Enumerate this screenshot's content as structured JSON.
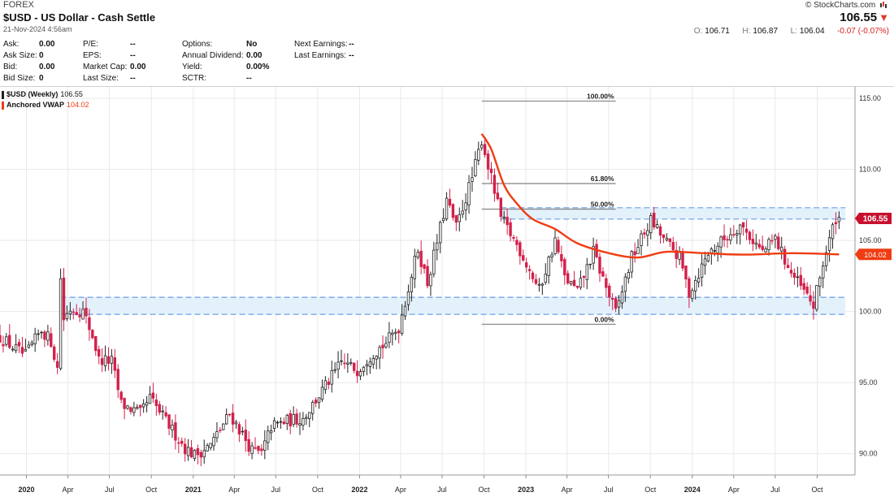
{
  "header": {
    "exchange": "FOREX",
    "title": "$USD - US Dollar - Cash Settle",
    "date": "21-Nov-2024 4:56am",
    "brand": "© StockCharts.com",
    "last_price": "106.55",
    "open_label": "O:",
    "open": "106.71",
    "high_label": "H:",
    "high": "106.87",
    "low_label": "L:",
    "low": "106.04",
    "change": "-0.07 (-0.07%)"
  },
  "stats": [
    {
      "label": "Ask:",
      "value": "0.00"
    },
    {
      "label": "Ask Size:",
      "value": "0"
    },
    {
      "label": "Bid:",
      "value": "0.00"
    },
    {
      "label": "Bid Size:",
      "value": "0"
    },
    {
      "label": "P/E:",
      "value": "--"
    },
    {
      "label": "EPS:",
      "value": "--"
    },
    {
      "label": "Market Cap:",
      "value": "0.00"
    },
    {
      "label": "Last Size:",
      "value": "--"
    },
    {
      "label": "Options:",
      "value": "No"
    },
    {
      "label": "Annual Dividend:",
      "value": "0.00"
    },
    {
      "label": "Yield:",
      "value": "0.00%"
    },
    {
      "label": "SCTR:",
      "value": "--"
    },
    {
      "label": "Next Earnings:",
      "value": "--"
    },
    {
      "label": "Last Earnings:",
      "value": "--"
    }
  ],
  "legend": [
    {
      "label": "$USD (Weekly)",
      "value": "106.55",
      "color": "#222222"
    },
    {
      "label": "Anchored VWAP",
      "value": "104.02",
      "color": "#f03c12"
    }
  ],
  "colors": {
    "up": "#222222",
    "down": "#d3204a",
    "vwap": "#f03c12",
    "price_tag": "#c8102e",
    "zone_fill": "#e3f1fb",
    "zone_line": "#6d9ee6",
    "fib_line": "#8c8c8c",
    "grid": "#e9e9e9"
  },
  "chart_data": {
    "type": "candlestick",
    "interval": "weekly",
    "ylim": [
      88.5,
      115.8
    ],
    "xlim": [
      "2019-11-04",
      "2024-12-23"
    ],
    "y_ticks": [
      "115.00",
      "110.00",
      "105.00",
      "100.00",
      "95.00",
      "90.00"
    ],
    "x_ticks": [
      {
        "date": "2020-01-01",
        "label": "2020",
        "bold": true
      },
      {
        "date": "2020-04-01",
        "label": "Apr"
      },
      {
        "date": "2020-07-01",
        "label": "Jul"
      },
      {
        "date": "2020-10-01",
        "label": "Oct"
      },
      {
        "date": "2021-01-01",
        "label": "2021",
        "bold": true
      },
      {
        "date": "2021-04-01",
        "label": "Apr"
      },
      {
        "date": "2021-07-01",
        "label": "Jul"
      },
      {
        "date": "2021-10-01",
        "label": "Oct"
      },
      {
        "date": "2022-01-01",
        "label": "2022",
        "bold": true
      },
      {
        "date": "2022-04-01",
        "label": "Apr"
      },
      {
        "date": "2022-07-01",
        "label": "Jul"
      },
      {
        "date": "2022-10-01",
        "label": "Oct"
      },
      {
        "date": "2023-01-01",
        "label": "2023",
        "bold": true
      },
      {
        "date": "2023-04-01",
        "label": "Apr"
      },
      {
        "date": "2023-07-01",
        "label": "Jul"
      },
      {
        "date": "2023-10-01",
        "label": "Oct"
      },
      {
        "date": "2024-01-01",
        "label": "2024",
        "bold": true
      },
      {
        "date": "2024-04-01",
        "label": "Apr"
      },
      {
        "date": "2024-07-01",
        "label": "Jul"
      },
      {
        "date": "2024-10-01",
        "label": "Oct"
      }
    ],
    "close_path": [
      [
        "2019-11-04",
        98.2
      ],
      [
        "2019-12-02",
        97.5
      ],
      [
        "2019-12-30",
        96.9
      ],
      [
        "2020-02-03",
        98.7
      ],
      [
        "2020-02-24",
        97.9
      ],
      [
        "2020-03-09",
        96.0
      ],
      [
        "2020-03-16",
        102.4
      ],
      [
        "2020-03-23",
        99.5
      ],
      [
        "2020-04-06",
        100.2
      ],
      [
        "2020-05-04",
        100.0
      ],
      [
        "2020-05-25",
        98.3
      ],
      [
        "2020-06-08",
        96.6
      ],
      [
        "2020-07-06",
        96.5
      ],
      [
        "2020-07-27",
        93.5
      ],
      [
        "2020-09-07",
        92.8
      ],
      [
        "2020-09-28",
        93.9
      ],
      [
        "2020-11-02",
        92.3
      ],
      [
        "2020-12-14",
        90.4
      ],
      [
        "2021-01-04",
        89.9
      ],
      [
        "2021-02-08",
        90.6
      ],
      [
        "2021-03-22",
        92.8
      ],
      [
        "2021-04-05",
        92.1
      ],
      [
        "2021-05-10",
        90.2
      ],
      [
        "2021-05-31",
        90.0
      ],
      [
        "2021-06-21",
        91.9
      ],
      [
        "2021-07-26",
        92.3
      ],
      [
        "2021-08-30",
        92.5
      ],
      [
        "2021-10-04",
        94.1
      ],
      [
        "2021-11-22",
        96.4
      ],
      [
        "2021-12-27",
        95.9
      ],
      [
        "2022-01-24",
        96.9
      ],
      [
        "2022-02-28",
        97.8
      ],
      [
        "2022-03-28",
        98.9
      ],
      [
        "2022-05-09",
        104.4
      ],
      [
        "2022-05-30",
        102.0
      ],
      [
        "2022-07-11",
        107.8
      ],
      [
        "2022-08-01",
        105.9
      ],
      [
        "2022-09-05",
        109.4
      ],
      [
        "2022-09-26",
        112.1
      ],
      [
        "2022-11-07",
        106.6
      ],
      [
        "2022-12-19",
        104.3
      ],
      [
        "2023-01-30",
        101.5
      ],
      [
        "2023-03-06",
        105.0
      ],
      [
        "2023-03-27",
        102.4
      ],
      [
        "2023-04-24",
        101.4
      ],
      [
        "2023-05-29",
        104.2
      ],
      [
        "2023-06-19",
        102.3
      ],
      [
        "2023-07-17",
        99.9
      ],
      [
        "2023-08-21",
        103.8
      ],
      [
        "2023-10-02",
        106.4
      ],
      [
        "2023-10-30",
        105.1
      ],
      [
        "2023-12-04",
        103.8
      ],
      [
        "2023-12-25",
        101.3
      ],
      [
        "2024-02-05",
        104.1
      ],
      [
        "2024-04-15",
        106.1
      ],
      [
        "2024-06-03",
        104.2
      ],
      [
        "2024-07-01",
        105.1
      ],
      [
        "2024-08-05",
        102.7
      ],
      [
        "2024-09-23",
        100.4
      ],
      [
        "2024-10-14",
        103.4
      ],
      [
        "2024-11-11",
        106.6
      ],
      [
        "2024-11-18",
        106.55
      ]
    ],
    "vwap": {
      "name": "Anchored VWAP",
      "anchor": "2022-09-26",
      "last": 104.02,
      "points": [
        [
          "2022-09-26",
          112.5
        ],
        [
          "2022-10-17",
          111.4
        ],
        [
          "2022-11-14",
          108.9
        ],
        [
          "2022-12-12",
          107.6
        ],
        [
          "2023-01-16",
          106.5
        ],
        [
          "2023-03-06",
          105.8
        ],
        [
          "2023-04-24",
          104.8
        ],
        [
          "2023-07-03",
          104.1
        ],
        [
          "2023-09-04",
          103.8
        ],
        [
          "2023-11-06",
          104.2
        ],
        [
          "2024-01-29",
          104.1
        ],
        [
          "2024-04-22",
          104.0
        ],
        [
          "2024-08-05",
          104.1
        ],
        [
          "2024-11-18",
          104.02
        ]
      ]
    },
    "fibonacci": {
      "start": "2022-09-26",
      "end": "2023-07-17",
      "levels": [
        {
          "label": "100.00%",
          "value": 114.8
        },
        {
          "label": "61.80%",
          "value": 109.0
        },
        {
          "label": "50.00%",
          "value": 107.2
        },
        {
          "label": "0.00%",
          "value": 99.1
        }
      ]
    },
    "zones": [
      {
        "start": "2020-03-16",
        "end": "2024-12-02",
        "top": 101.0,
        "bottom": 99.8
      },
      {
        "start": "2022-11-07",
        "end": "2024-12-02",
        "top": 107.3,
        "bottom": 106.5
      }
    ],
    "price_tags": [
      {
        "value": 106.55,
        "label": "106.55"
      },
      {
        "value": 104.02,
        "label": "104.02"
      }
    ]
  }
}
